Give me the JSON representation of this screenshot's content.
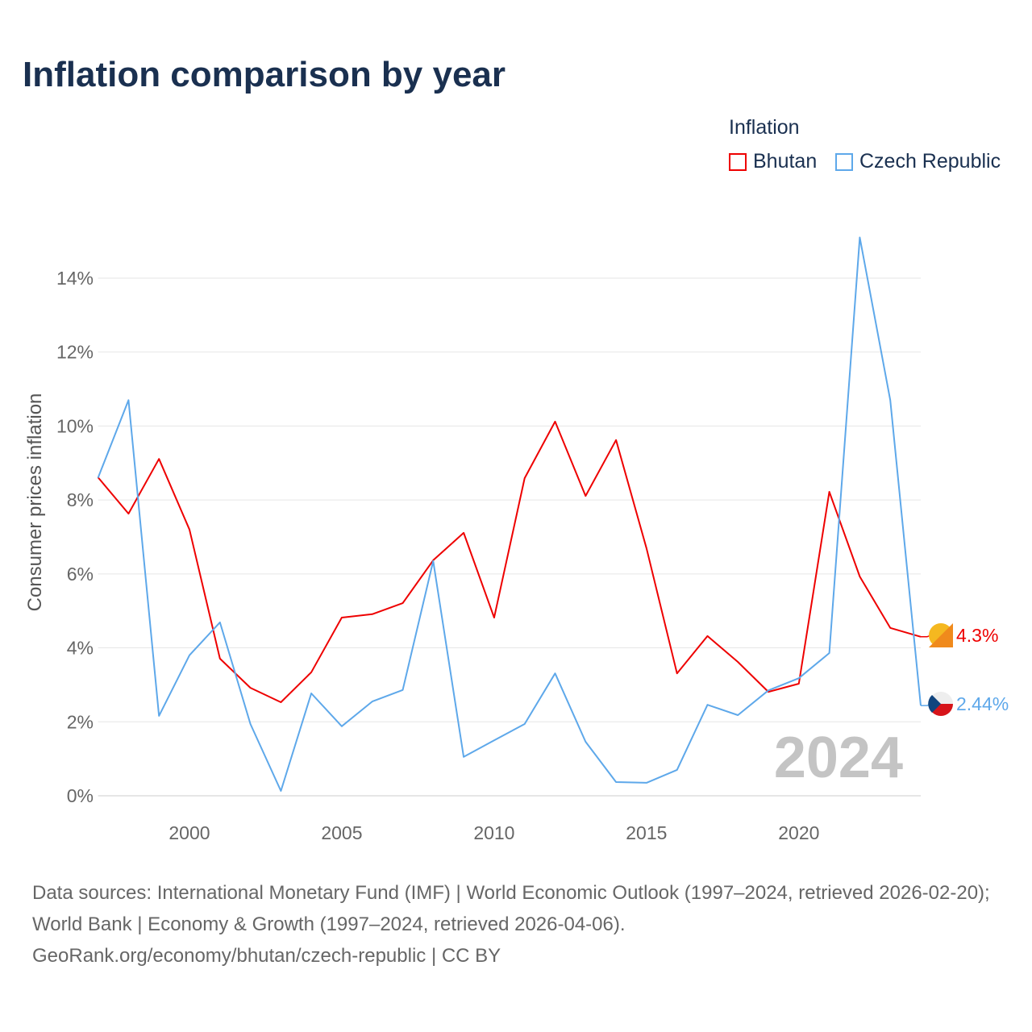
{
  "chart_data": {
    "type": "line",
    "title": "Inflation comparison by year",
    "legend_title": "Inflation",
    "ylabel": "Consumer prices inflation",
    "xlabel": "",
    "ylim": [
      0,
      15.5
    ],
    "xlim": [
      1997,
      2024
    ],
    "yticks": [
      0,
      2,
      4,
      6,
      8,
      10,
      12,
      14
    ],
    "ytick_labels": [
      "0%",
      "2%",
      "4%",
      "6%",
      "8%",
      "10%",
      "12%",
      "14%"
    ],
    "xticks": [
      2000,
      2005,
      2010,
      2015,
      2020
    ],
    "xtick_labels": [
      "2000",
      "2005",
      "2010",
      "2015",
      "2020"
    ],
    "grid": true,
    "legend_position": "top-right",
    "year_watermark": "2024",
    "x": [
      1997,
      1998,
      1999,
      2000,
      2001,
      2002,
      2003,
      2004,
      2005,
      2006,
      2007,
      2008,
      2009,
      2010,
      2011,
      2012,
      2013,
      2014,
      2015,
      2016,
      2017,
      2018,
      2019,
      2020,
      2021,
      2022,
      2023,
      2024
    ],
    "series": [
      {
        "name": "Bhutan",
        "color": "#ee0000",
        "end_label": "4.3%",
        "values": [
          8.61,
          7.63,
          9.11,
          7.2,
          3.71,
          2.92,
          2.53,
          3.34,
          4.82,
          4.91,
          5.21,
          6.37,
          7.11,
          4.82,
          8.59,
          10.12,
          8.11,
          9.62,
          6.69,
          3.31,
          4.32,
          3.62,
          2.81,
          3.03,
          8.22,
          5.93,
          4.54,
          4.3
        ]
      },
      {
        "name": "Czech Republic",
        "color": "#5ea8ea",
        "end_label": "2.44%",
        "values": [
          8.6,
          10.7,
          2.16,
          3.8,
          4.69,
          1.94,
          0.13,
          2.77,
          1.88,
          2.55,
          2.86,
          6.35,
          1.05,
          1.5,
          1.94,
          3.31,
          1.46,
          0.37,
          0.35,
          0.7,
          2.46,
          2.18,
          2.85,
          3.18,
          3.86,
          15.1,
          10.7,
          2.44
        ]
      }
    ]
  },
  "footer": {
    "sources": "Data sources: International Monetary Fund (IMF) | World Economic Outlook (1997–2024, retrieved 2026-02-20); World Bank | Economy & Growth (1997–2024, retrieved 2026-04-06).",
    "link": "GeoRank.org/economy/bhutan/czech-republic | CC BY"
  }
}
